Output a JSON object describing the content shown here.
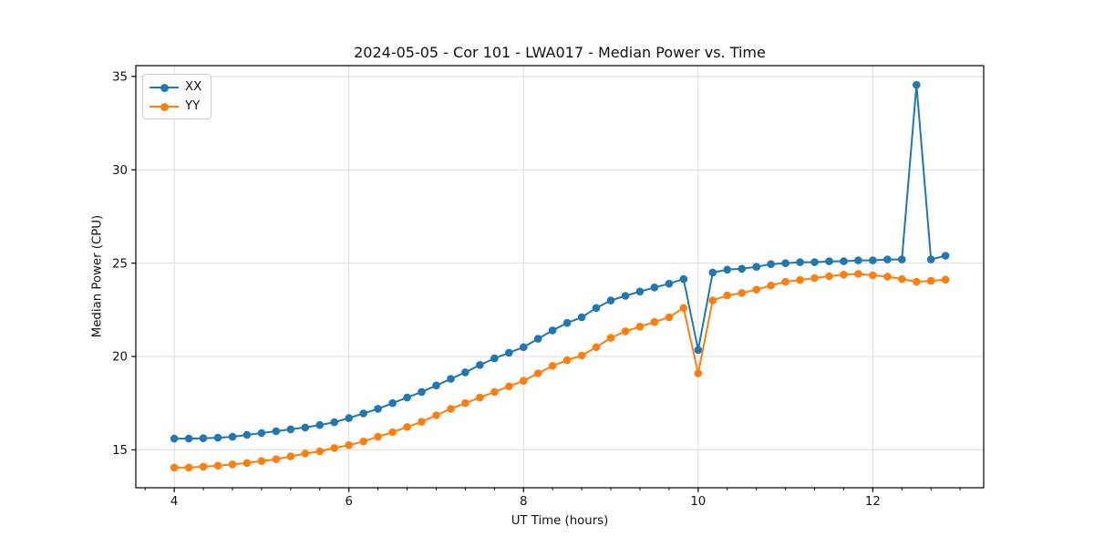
{
  "chart_data": {
    "type": "line",
    "title": "2024-05-05 - Cor 101 - LWA017 - Median Power vs. Time",
    "xlabel": "UT Time (hours)",
    "ylabel": "Median Power (CPU)",
    "xlim": [
      3.56,
      13.27
    ],
    "ylim": [
      12.97,
      35.58
    ],
    "xticks": [
      4,
      6,
      8,
      10,
      12
    ],
    "yticks": [
      15,
      20,
      25,
      30,
      35
    ],
    "x_minor_tick_step": 0.33333,
    "grid": true,
    "legend_position": "upper left",
    "marker": "circle",
    "sample_interval_hours": 0.16667,
    "x": [
      4.0,
      4.167,
      4.333,
      4.5,
      4.667,
      4.833,
      5.0,
      5.167,
      5.333,
      5.5,
      5.667,
      5.833,
      6.0,
      6.167,
      6.333,
      6.5,
      6.667,
      6.833,
      7.0,
      7.167,
      7.333,
      7.5,
      7.667,
      7.833,
      8.0,
      8.167,
      8.333,
      8.5,
      8.667,
      8.833,
      9.0,
      9.167,
      9.333,
      9.5,
      9.667,
      9.833,
      10.0,
      10.167,
      10.333,
      10.5,
      10.667,
      10.833,
      11.0,
      11.167,
      11.333,
      11.5,
      11.667,
      11.833,
      12.0,
      12.167,
      12.333,
      12.5,
      12.667,
      12.833
    ],
    "series": [
      {
        "name": "XX",
        "color": "#1f77b4",
        "values": [
          15.6,
          15.6,
          15.62,
          15.65,
          15.7,
          15.8,
          15.9,
          16.0,
          16.1,
          16.2,
          16.33,
          16.48,
          16.7,
          16.95,
          17.2,
          17.5,
          17.8,
          18.1,
          18.45,
          18.8,
          19.15,
          19.55,
          19.9,
          20.2,
          20.5,
          20.95,
          21.4,
          21.8,
          22.1,
          22.6,
          23.0,
          23.25,
          23.48,
          23.7,
          23.9,
          24.15,
          20.35,
          24.5,
          24.65,
          24.7,
          24.8,
          24.95,
          25.0,
          25.05,
          25.05,
          25.1,
          25.1,
          25.15,
          25.15,
          25.2,
          25.2,
          34.55,
          25.2,
          25.4
        ]
      },
      {
        "name": "YY",
        "color": "#ff7f0e",
        "values": [
          14.05,
          14.05,
          14.1,
          14.15,
          14.22,
          14.3,
          14.4,
          14.5,
          14.65,
          14.8,
          14.92,
          15.1,
          15.25,
          15.45,
          15.7,
          15.95,
          16.22,
          16.5,
          16.85,
          17.2,
          17.5,
          17.8,
          18.1,
          18.4,
          18.7,
          19.1,
          19.5,
          19.8,
          20.05,
          20.5,
          21.0,
          21.35,
          21.6,
          21.85,
          22.1,
          22.6,
          19.1,
          23.0,
          23.27,
          23.4,
          23.58,
          23.8,
          24.0,
          24.1,
          24.2,
          24.3,
          24.38,
          24.42,
          24.35,
          24.28,
          24.15,
          24.0,
          24.05,
          24.12
        ]
      }
    ]
  }
}
